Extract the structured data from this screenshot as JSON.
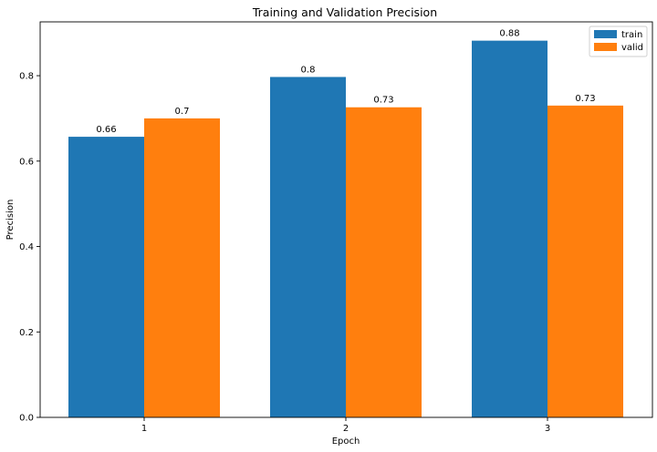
{
  "chart_data": {
    "type": "bar",
    "title": "Training and Validation Precision",
    "xlabel": "Epoch",
    "ylabel": "Precision",
    "categories": [
      "1",
      "2",
      "3"
    ],
    "series": [
      {
        "name": "train",
        "values": [
          0.657,
          0.797,
          0.882
        ],
        "labels": [
          "0.66",
          "0.8",
          "0.88"
        ],
        "color": "#1f77b4"
      },
      {
        "name": "valid",
        "values": [
          0.7,
          0.726,
          0.73
        ],
        "labels": [
          "0.7",
          "0.73",
          "0.73"
        ],
        "color": "#ff7f0e"
      }
    ],
    "ylim": [
      0,
      0.926
    ],
    "yticks": [
      0.0,
      0.2,
      0.4,
      0.6,
      0.8
    ],
    "ytick_labels": [
      "0.0",
      "0.2",
      "0.4",
      "0.6",
      "0.8"
    ],
    "grid": false,
    "legend_position": "top-right"
  }
}
